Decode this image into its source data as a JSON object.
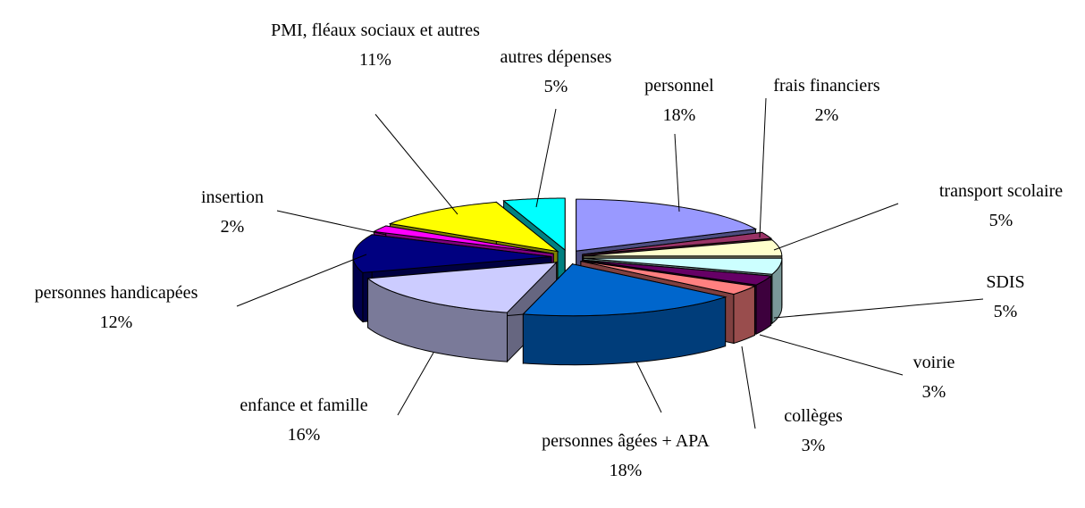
{
  "chart_data": {
    "type": "pie3d",
    "categories": [
      "personnel",
      "frais financiers",
      "transport scolaire",
      "SDIS",
      "voirie",
      "collèges",
      "personnes âgées + APA",
      "enfance et famille",
      "personnes handicapées",
      "insertion",
      "PMI, fléaux sociaux et autres",
      "autres dépenses"
    ],
    "values": [
      18,
      2,
      5,
      5,
      3,
      3,
      18,
      16,
      12,
      2,
      11,
      5
    ],
    "value_labels": [
      "18%",
      "2%",
      "5%",
      "5%",
      "3%",
      "3%",
      "18%",
      "16%",
      "12%",
      "2%",
      "11%",
      "5%"
    ],
    "colors": [
      "#9999ff",
      "#993366",
      "#ffffcc",
      "#ccffff",
      "#660066",
      "#ff8080",
      "#0066cc",
      "#ccccff",
      "#000080",
      "#ff00ff",
      "#ffff00",
      "#00ffff"
    ]
  }
}
